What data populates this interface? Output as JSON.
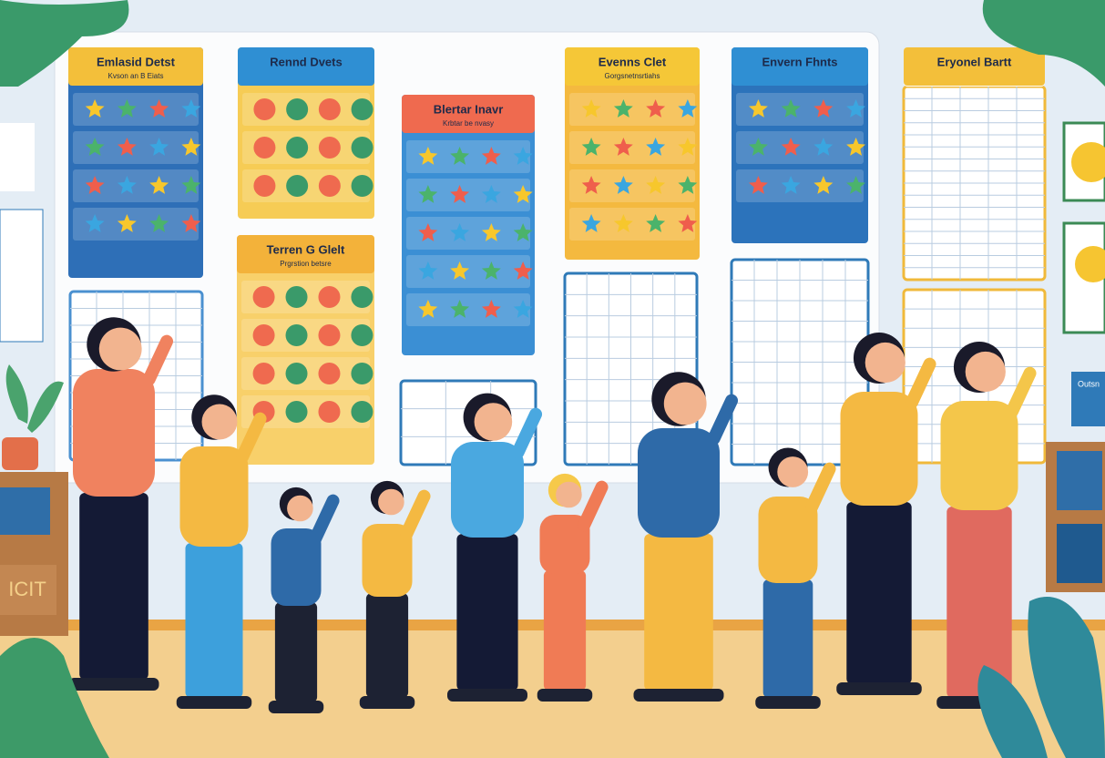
{
  "charts": [
    {
      "title": "Emlasid Detst",
      "subtitle": "Kvson an B Eiats"
    },
    {
      "title": "Rennd Dvets"
    },
    {
      "title": "Blertar Inavr",
      "subtitle": "Krbtar be nvasy"
    },
    {
      "title": "Evenns Clet",
      "subtitle": "Gorgsnetnsrtiahs"
    },
    {
      "title": "Envern Fhnts"
    },
    {
      "title": "Eryonel Bartt"
    },
    {
      "title": "Terren G Glelt",
      "subtitle": "Prgrstion betsre"
    }
  ],
  "shelf_label": "ICIT",
  "sign": "Outsn"
}
